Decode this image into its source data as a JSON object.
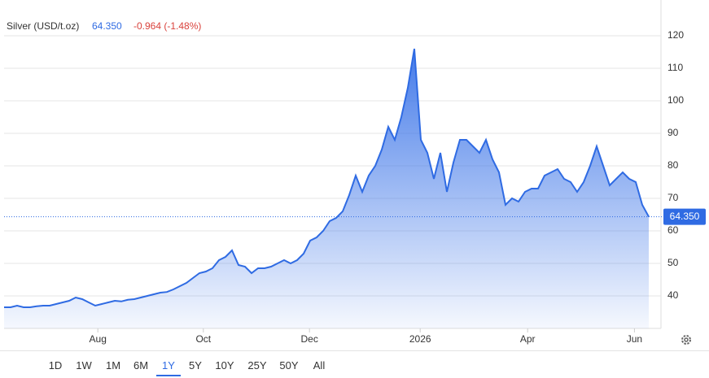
{
  "header": {
    "price": "64.350",
    "change": "-0.964 (-1.48%)"
  },
  "chart_data": {
    "type": "area",
    "title": "Silver (USD/t.oz)",
    "color": "#2f6be3",
    "values": [
      36.5,
      36.5,
      37,
      36.5,
      36.5,
      36.8,
      37,
      37,
      37.5,
      38,
      38.5,
      39.5,
      39,
      38,
      37,
      37.5,
      38,
      38.5,
      38.3,
      38.8,
      39,
      39.5,
      40,
      40.5,
      41,
      41.2,
      42,
      43,
      44,
      45.5,
      47,
      47.5,
      48.5,
      51,
      52,
      54,
      49.5,
      49,
      47,
      48.5,
      48.5,
      49,
      50,
      51,
      50,
      51,
      53,
      57,
      58,
      60,
      63,
      64,
      66,
      71,
      77,
      72,
      77,
      80,
      85,
      92,
      88,
      95,
      104,
      116,
      88,
      84,
      76,
      84,
      72,
      81,
      88,
      88,
      86,
      84,
      88,
      82,
      78,
      68,
      70,
      69,
      72,
      73,
      73,
      77,
      78,
      79,
      76,
      75,
      72,
      75,
      80,
      86,
      80,
      74,
      76,
      78,
      76,
      75,
      68,
      64.35
    ],
    "xlim": [
      0,
      99
    ],
    "xticks": [
      {
        "value": 14.4,
        "label": "Aug"
      },
      {
        "value": 30.6,
        "label": "Oct"
      },
      {
        "value": 46.9,
        "label": "Dec"
      },
      {
        "value": 63.9,
        "label": "2026"
      },
      {
        "value": 80.4,
        "label": "Apr"
      },
      {
        "value": 96.8,
        "label": "Jun"
      }
    ],
    "ylim": [
      30,
      130
    ],
    "yticks": [
      40,
      50,
      60,
      70,
      80,
      90,
      100,
      110,
      120
    ],
    "grid": true
  },
  "ranges": [
    "1D",
    "1W",
    "1M",
    "6M",
    "1Y",
    "5Y",
    "10Y",
    "25Y",
    "50Y",
    "All"
  ],
  "selected_range": 4
}
